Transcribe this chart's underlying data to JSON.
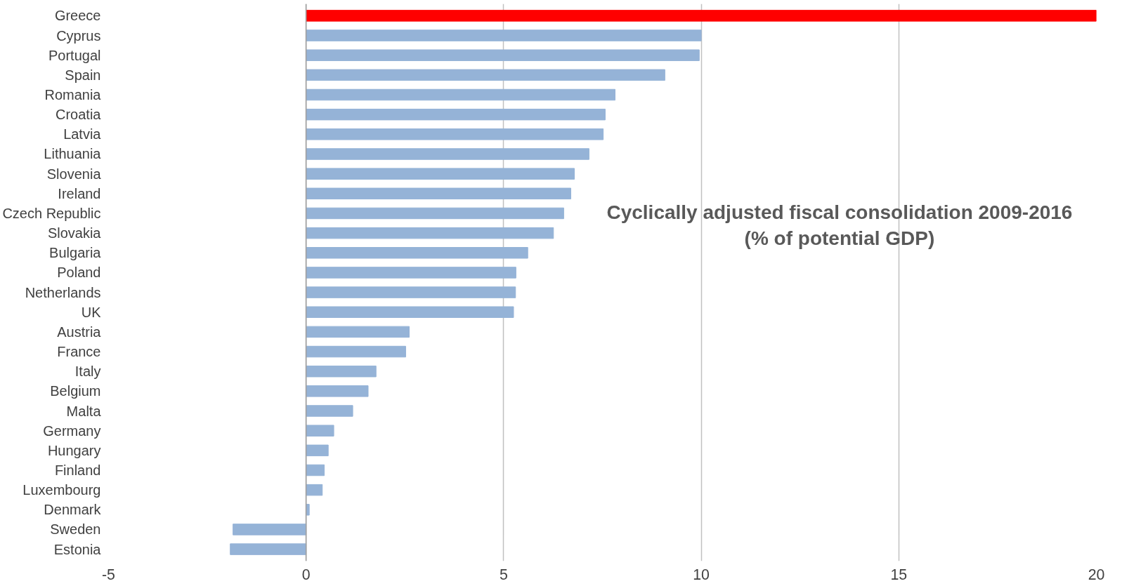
{
  "chart_data": {
    "type": "bar",
    "orientation": "horizontal",
    "title": "Cyclically adjusted fiscal consolidation 2009-2016",
    "subtitle": "(% of potential GDP)",
    "categories": [
      "Greece",
      "Cyprus",
      "Portugal",
      "Spain",
      "Romania",
      "Croatia",
      "Latvia",
      "Lithuania",
      "Slovenia",
      "Ireland",
      "Czech Republic",
      "Slovakia",
      "Bulgaria",
      "Poland",
      "Netherlands",
      "UK",
      "Austria",
      "France",
      "Italy",
      "Belgium",
      "Malta",
      "Germany",
      "Hungary",
      "Finland",
      "Luxembourg",
      "Denmark",
      "Sweden",
      "Estonia"
    ],
    "values": [
      20,
      10.0,
      9.95,
      9.08,
      7.82,
      7.57,
      7.52,
      7.16,
      6.79,
      6.7,
      6.52,
      6.26,
      5.61,
      5.31,
      5.3,
      5.25,
      2.61,
      2.52,
      1.77,
      1.57,
      1.18,
      0.7,
      0.56,
      0.46,
      0.41,
      0.08,
      -1.85,
      -1.92
    ],
    "colors": [
      "#ff0000",
      "#95b3d7",
      "#95b3d7",
      "#95b3d7",
      "#95b3d7",
      "#95b3d7",
      "#95b3d7",
      "#95b3d7",
      "#95b3d7",
      "#95b3d7",
      "#95b3d7",
      "#95b3d7",
      "#95b3d7",
      "#95b3d7",
      "#95b3d7",
      "#95b3d7",
      "#95b3d7",
      "#95b3d7",
      "#95b3d7",
      "#95b3d7",
      "#95b3d7",
      "#95b3d7",
      "#95b3d7",
      "#95b3d7",
      "#95b3d7",
      "#95b3d7",
      "#95b3d7",
      "#95b3d7"
    ],
    "xlim": [
      -5,
      20
    ],
    "xticks": [
      -5,
      0,
      5,
      10,
      15,
      20
    ],
    "grid": "x"
  }
}
